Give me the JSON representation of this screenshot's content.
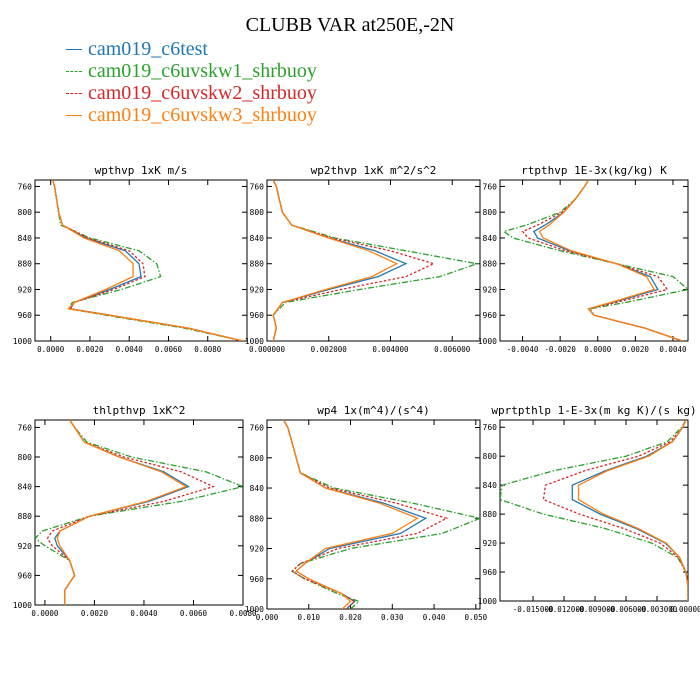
{
  "title": "CLUBB VAR at250E,-2N",
  "legend": [
    {
      "label": "cam019_c6test",
      "color": "#1f77b4",
      "dash": "solid"
    },
    {
      "label": "cam019_c6uvskw1_shrbuoy",
      "color": "#2ca02c",
      "dash": "dashdot"
    },
    {
      "label": "cam019_c6uvskw2_shrbuoy",
      "color": "#d62728",
      "dash": "dot"
    },
    {
      "label": "cam019_c6uvskw3_shrbuoy",
      "color": "#ff7f0e",
      "dash": "solid"
    }
  ],
  "chart_data": [
    {
      "type": "line",
      "title": "wpthvp  1xK m/s",
      "xlim": [
        -0.0008,
        0.01
      ],
      "ylim": [
        1000,
        750
      ],
      "xticks": [
        "0.0000",
        "0.0020",
        "0.0040",
        "0.0060",
        "0.0080"
      ],
      "xtick_values": [
        0,
        0.002,
        0.004,
        0.006,
        0.008
      ],
      "yticks": [
        760,
        800,
        840,
        880,
        920,
        960,
        1000
      ],
      "y": [
        750,
        760,
        780,
        800,
        820,
        840,
        860,
        880,
        900,
        920,
        940,
        950,
        960,
        980,
        1000
      ],
      "series": [
        {
          "name": "cam019_c6test",
          "values": [
            0.0001,
            0.0002,
            0.0003,
            0.0004,
            0.0006,
            0.0018,
            0.0038,
            0.0045,
            0.0046,
            0.003,
            0.0012,
            0.001,
            0.003,
            0.007,
            0.0098
          ]
        },
        {
          "name": "cam019_c6uvskw1_shrbuoy",
          "values": [
            0.0001,
            0.0002,
            0.0003,
            0.0004,
            0.0005,
            0.002,
            0.0045,
            0.0054,
            0.0056,
            0.0036,
            0.0011,
            0.0009,
            0.0028,
            0.0068,
            0.0098
          ]
        },
        {
          "name": "cam019_c6uvskw2_shrbuoy",
          "values": [
            0.0001,
            0.0002,
            0.0003,
            0.0004,
            0.0006,
            0.0019,
            0.004,
            0.0047,
            0.0048,
            0.0032,
            0.0012,
            0.001,
            0.003,
            0.007,
            0.0098
          ]
        },
        {
          "name": "cam019_c6uvskw3_shrbuoy",
          "values": [
            0.0001,
            0.0002,
            0.0003,
            0.0004,
            0.0006,
            0.0017,
            0.0035,
            0.0042,
            0.0042,
            0.0028,
            0.0012,
            0.0009,
            0.003,
            0.007,
            0.0098
          ]
        }
      ]
    },
    {
      "type": "line",
      "title": "wp2thvp  1xK m^2/s^2",
      "xlim": [
        0,
        0.0069
      ],
      "ylim": [
        1000,
        750
      ],
      "xticks": [
        "0.000000",
        "0.002000",
        "0.004000",
        "0.006000"
      ],
      "xtick_values": [
        0,
        0.002,
        0.004,
        0.006
      ],
      "yticks": [
        760,
        800,
        840,
        880,
        920,
        960,
        1000
      ],
      "y": [
        750,
        760,
        780,
        800,
        820,
        840,
        860,
        880,
        900,
        920,
        940,
        960,
        980,
        1000
      ],
      "series": [
        {
          "name": "cam019_c6test",
          "values": [
            0.0002,
            0.0003,
            0.0004,
            0.0005,
            0.0008,
            0.002,
            0.0035,
            0.0045,
            0.0036,
            0.002,
            0.0005,
            0.0002,
            0.0003,
            0.0002
          ]
        },
        {
          "name": "cam019_c6uvskw1_shrbuoy",
          "values": [
            0.0002,
            0.0003,
            0.0004,
            0.0005,
            0.0008,
            0.0022,
            0.0045,
            0.0068,
            0.0056,
            0.003,
            0.0006,
            0.0002,
            0.0003,
            0.0002
          ]
        },
        {
          "name": "cam019_c6uvskw2_shrbuoy",
          "values": [
            0.0002,
            0.0003,
            0.0004,
            0.0005,
            0.0008,
            0.0021,
            0.004,
            0.0054,
            0.0045,
            0.0024,
            0.0005,
            0.0002,
            0.0003,
            0.0002
          ]
        },
        {
          "name": "cam019_c6uvskw3_shrbuoy",
          "values": [
            0.0002,
            0.0003,
            0.0004,
            0.0005,
            0.0008,
            0.002,
            0.0033,
            0.0042,
            0.0034,
            0.0019,
            0.0005,
            0.0002,
            0.0003,
            0.0002
          ]
        }
      ]
    },
    {
      "type": "line",
      "title": "rtpthvp  1E-3x(kg/kg) K",
      "xlim": [
        -0.0052,
        0.0048
      ],
      "ylim": [
        1000,
        750
      ],
      "xticks": [
        "-0.0040",
        "-0.0020",
        "0.0000",
        "0.0020",
        "0.0040"
      ],
      "xtick_values": [
        -0.004,
        -0.002,
        0,
        0.002,
        0.004
      ],
      "yticks": [
        760,
        800,
        840,
        880,
        920,
        960,
        1000
      ],
      "y": [
        750,
        760,
        780,
        800,
        820,
        830,
        840,
        860,
        880,
        900,
        920,
        940,
        950,
        960,
        980,
        1000
      ],
      "series": [
        {
          "name": "cam019_c6test",
          "values": [
            -0.0005,
            -0.0007,
            -0.0012,
            -0.0018,
            -0.0028,
            -0.0034,
            -0.0032,
            -0.0015,
            0.001,
            0.0028,
            0.0032,
            0.0008,
            -0.0005,
            -0.0002,
            0.0025,
            0.0045
          ]
        },
        {
          "name": "cam019_c6uvskw1_shrbuoy",
          "values": [
            -0.0005,
            -0.0007,
            -0.0012,
            -0.002,
            -0.0038,
            -0.005,
            -0.0045,
            -0.002,
            0.001,
            0.004,
            0.0048,
            0.0015,
            -0.0004,
            -0.0002,
            0.0025,
            0.0045
          ]
        },
        {
          "name": "cam019_c6uvskw2_shrbuoy",
          "values": [
            -0.0005,
            -0.0007,
            -0.0012,
            -0.0019,
            -0.0032,
            -0.004,
            -0.0037,
            -0.0017,
            0.001,
            0.0032,
            0.0037,
            0.001,
            -0.0005,
            -0.0002,
            0.0025,
            0.0045
          ]
        },
        {
          "name": "cam019_c6uvskw3_shrbuoy",
          "values": [
            -0.0005,
            -0.0007,
            -0.0012,
            -0.0018,
            -0.0026,
            -0.0031,
            -0.0029,
            -0.0014,
            0.001,
            0.0026,
            0.003,
            0.0007,
            -0.0005,
            -0.0002,
            0.0025,
            0.0045
          ]
        }
      ]
    },
    {
      "type": "line",
      "title": "thlpthvp  1xK^2",
      "xlim": [
        -0.0004,
        0.008
      ],
      "ylim": [
        1000,
        750
      ],
      "xticks": [
        "0.0000",
        "0.0020",
        "0.0040",
        "0.0060",
        "0.0080"
      ],
      "xtick_values": [
        0,
        0.002,
        0.004,
        0.006,
        0.008
      ],
      "yticks": [
        760,
        800,
        840,
        880,
        920,
        960,
        1000
      ],
      "y": [
        750,
        760,
        780,
        800,
        820,
        840,
        860,
        880,
        900,
        910,
        920,
        940,
        960,
        980,
        1000
      ],
      "series": [
        {
          "name": "cam019_c6test",
          "values": [
            0.001,
            0.0012,
            0.0016,
            0.003,
            0.0048,
            0.0058,
            0.0042,
            0.0018,
            0.0006,
            0.0004,
            0.0005,
            0.001,
            0.0012,
            0.0008,
            0.0008
          ]
        },
        {
          "name": "cam019_c6uvskw1_shrbuoy",
          "values": [
            0.001,
            0.0012,
            0.0017,
            0.0035,
            0.0065,
            0.008,
            0.0055,
            0.0018,
            -0.0001,
            -0.0004,
            0.0,
            0.001,
            0.0012,
            0.0008,
            0.0008
          ]
        },
        {
          "name": "cam019_c6uvskw2_shrbuoy",
          "values": [
            0.001,
            0.0012,
            0.0016,
            0.0032,
            0.0055,
            0.0068,
            0.0048,
            0.0018,
            0.0003,
            0.0001,
            0.0003,
            0.001,
            0.0012,
            0.0008,
            0.0008
          ]
        },
        {
          "name": "cam019_c6uvskw3_shrbuoy",
          "values": [
            0.001,
            0.0012,
            0.0016,
            0.003,
            0.0047,
            0.0057,
            0.0041,
            0.0018,
            0.0006,
            0.0005,
            0.0006,
            0.001,
            0.0012,
            0.0008,
            0.0008
          ]
        }
      ]
    },
    {
      "type": "line",
      "title": "wp4  1x(m^4)/(s^4)",
      "xlim": [
        0,
        0.051
      ],
      "ylim": [
        1000,
        750
      ],
      "xticks": [
        "0.000",
        "0.010",
        "0.020",
        "0.030",
        "0.040",
        "0.050"
      ],
      "xtick_values": [
        0,
        0.01,
        0.02,
        0.03,
        0.04,
        0.05
      ],
      "yticks": [
        760,
        800,
        840,
        880,
        920,
        960,
        1000
      ],
      "y": [
        750,
        760,
        780,
        800,
        820,
        840,
        860,
        880,
        900,
        920,
        940,
        950,
        960,
        980,
        990,
        1000
      ],
      "series": [
        {
          "name": "cam019_c6test",
          "values": [
            0.004,
            0.005,
            0.006,
            0.007,
            0.008,
            0.014,
            0.028,
            0.038,
            0.032,
            0.015,
            0.009,
            0.007,
            0.01,
            0.018,
            0.021,
            0.019
          ]
        },
        {
          "name": "cam019_c6uvskw1_shrbuoy",
          "values": [
            0.004,
            0.005,
            0.006,
            0.007,
            0.008,
            0.016,
            0.035,
            0.051,
            0.042,
            0.02,
            0.008,
            0.006,
            0.009,
            0.017,
            0.022,
            0.02
          ]
        },
        {
          "name": "cam019_c6uvskw2_shrbuoy",
          "values": [
            0.004,
            0.005,
            0.006,
            0.007,
            0.008,
            0.015,
            0.031,
            0.043,
            0.036,
            0.017,
            0.008,
            0.006,
            0.009,
            0.018,
            0.021,
            0.019
          ]
        },
        {
          "name": "cam019_c6uvskw3_shrbuoy",
          "values": [
            0.004,
            0.005,
            0.006,
            0.007,
            0.008,
            0.014,
            0.027,
            0.036,
            0.03,
            0.014,
            0.009,
            0.007,
            0.01,
            0.018,
            0.02,
            0.018
          ]
        }
      ]
    },
    {
      "type": "line",
      "title": "wprtpthlp  1-E-3x(m kg K)/(s kg)",
      "xlim": [
        -0.0182,
        0
      ],
      "ylim": [
        1000,
        750
      ],
      "xticks": [
        "-0.015000",
        "-0.012000",
        "-0.009000",
        "-0.006000",
        "-0.003000",
        "0.000000"
      ],
      "xtick_values": [
        -0.015,
        -0.012,
        -0.009,
        -0.006,
        -0.003,
        0
      ],
      "yticks": [
        760,
        800,
        840,
        880,
        920,
        960,
        1000
      ],
      "y": [
        750,
        760,
        780,
        800,
        820,
        840,
        860,
        880,
        900,
        920,
        940,
        960,
        980,
        1000
      ],
      "series": [
        {
          "name": "cam019_c6test",
          "values": [
            -0.0002,
            -0.0005,
            -0.0015,
            -0.004,
            -0.008,
            -0.0112,
            -0.0112,
            -0.0085,
            -0.005,
            -0.0022,
            -0.0008,
            -0.0002,
            0.0,
            0.0
          ]
        },
        {
          "name": "cam019_c6uvskw1_shrbuoy",
          "values": [
            -0.0002,
            -0.0006,
            -0.002,
            -0.006,
            -0.013,
            -0.018,
            -0.0182,
            -0.014,
            -0.008,
            -0.0035,
            -0.001,
            -0.0002,
            0.0,
            0.0
          ]
        },
        {
          "name": "cam019_c6uvskw2_shrbuoy",
          "values": [
            -0.0002,
            -0.0005,
            -0.0017,
            -0.0048,
            -0.01,
            -0.0138,
            -0.014,
            -0.0105,
            -0.0062,
            -0.0027,
            -0.0009,
            -0.0002,
            0.0,
            0.0
          ]
        },
        {
          "name": "cam019_c6uvskw3_shrbuoy",
          "values": [
            -0.0002,
            -0.0005,
            -0.0015,
            -0.0038,
            -0.0078,
            -0.0106,
            -0.0106,
            -0.0082,
            -0.0048,
            -0.0021,
            -0.0008,
            -0.0002,
            0.0,
            0.0
          ]
        }
      ]
    }
  ]
}
